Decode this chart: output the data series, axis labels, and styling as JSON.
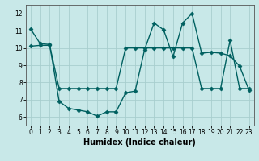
{
  "title": "",
  "xlabel": "Humidex (Indice chaleur)",
  "ylabel": "",
  "xlim": [
    -0.5,
    23.5
  ],
  "ylim": [
    5.5,
    12.5
  ],
  "xticks": [
    0,
    1,
    2,
    3,
    4,
    5,
    6,
    7,
    8,
    9,
    10,
    11,
    12,
    13,
    14,
    15,
    16,
    17,
    18,
    19,
    20,
    21,
    22,
    23
  ],
  "yticks": [
    6,
    7,
    8,
    9,
    10,
    11,
    12
  ],
  "background_color": "#c8e8e8",
  "grid_color": "#a8cece",
  "line_color": "#006060",
  "line1_x": [
    0,
    1,
    2,
    3,
    4,
    5,
    6,
    7,
    8,
    9,
    10,
    11,
    12,
    13,
    14,
    15,
    16,
    17,
    18,
    19,
    20,
    21,
    22,
    23
  ],
  "line1_y": [
    11.1,
    10.25,
    10.2,
    6.9,
    6.5,
    6.4,
    6.3,
    6.05,
    6.3,
    6.3,
    7.4,
    7.5,
    9.9,
    11.45,
    11.05,
    9.5,
    11.45,
    12.0,
    9.7,
    9.75,
    9.7,
    9.55,
    8.95,
    7.55
  ],
  "line2_x": [
    0,
    1,
    2,
    3,
    4,
    5,
    6,
    7,
    8,
    9,
    10,
    11,
    12,
    13,
    14,
    15,
    16,
    17,
    18,
    19,
    20,
    21,
    22,
    23
  ],
  "line2_y": [
    10.1,
    10.15,
    10.15,
    7.65,
    7.65,
    7.65,
    7.65,
    7.65,
    7.65,
    7.65,
    10.0,
    10.0,
    10.0,
    10.0,
    10.0,
    10.0,
    10.0,
    10.0,
    7.65,
    7.65,
    7.65,
    10.45,
    7.65,
    7.65
  ],
  "marker": "D",
  "markersize": 2.5,
  "linewidth": 1.0,
  "tick_fontsize": 5.5,
  "xlabel_fontsize": 7.0
}
